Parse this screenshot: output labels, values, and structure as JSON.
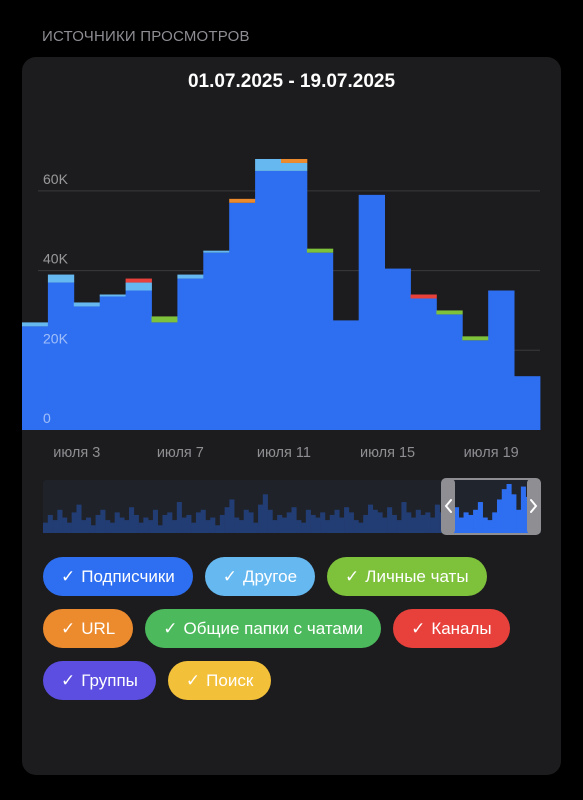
{
  "section": {
    "title": "ИСТОЧНИКИ ПРОСМОТРОВ"
  },
  "card": {
    "date_range": "01.07.2025 - 19.07.2025"
  },
  "colors": {
    "background": "#000000",
    "card": "#1c1c1e",
    "grid": "#3a3a3c",
    "axis_text": "#8e8e93"
  },
  "chips": [
    {
      "label": "Подписчики",
      "check": "✓",
      "color": "#2e6ff2"
    },
    {
      "label": "Другое",
      "check": "✓",
      "color": "#66b8f0"
    },
    {
      "label": "Личные чаты",
      "check": "✓",
      "color": "#7ec13b"
    },
    {
      "label": "URL",
      "check": "✓",
      "color": "#ec8a2e"
    },
    {
      "label": "Общие папки с чатами",
      "check": "✓",
      "color": "#4cba5c"
    },
    {
      "label": "Каналы",
      "check": "✓",
      "color": "#e8413b"
    },
    {
      "label": "Группы",
      "check": "✓",
      "color": "#5b4ee0"
    },
    {
      "label": "Поиск",
      "check": "✓",
      "color": "#f3c03a"
    }
  ],
  "chart_data": {
    "type": "bar",
    "stacked": true,
    "x_ticks": [
      "июля 3",
      "июля 7",
      "июля 11",
      "июля 15",
      "июля 19"
    ],
    "y_ticks": [
      "0",
      "20K",
      "40K",
      "60K"
    ],
    "ylim": [
      0,
      70000
    ],
    "grid": true,
    "series": [
      {
        "name": "Подписчики",
        "color": "#2e6ff2",
        "values": [
          26000,
          37000,
          31000,
          33500,
          35000,
          27000,
          38000,
          44500,
          57000,
          65000,
          65000,
          44500,
          27500,
          59000,
          40500,
          33000,
          29000,
          22500,
          35000,
          13500
        ]
      },
      {
        "name": "Другое",
        "color": "#66b8f0",
        "values": [
          1000,
          2000,
          1000,
          500,
          2000,
          0,
          1000,
          500,
          0,
          3000,
          2000,
          0,
          0,
          0,
          0,
          0,
          0,
          0,
          0,
          0
        ]
      },
      {
        "name": "Личные чаты",
        "color": "#7ec13b",
        "values": [
          0,
          0,
          0,
          0,
          0,
          1500,
          0,
          0,
          0,
          0,
          0,
          1000,
          0,
          0,
          0,
          0,
          1000,
          1000,
          0,
          0
        ]
      },
      {
        "name": "URL",
        "color": "#ec8a2e",
        "values": [
          0,
          0,
          0,
          0,
          0,
          0,
          0,
          0,
          1000,
          0,
          1000,
          0,
          0,
          0,
          0,
          0,
          0,
          0,
          0,
          0
        ]
      },
      {
        "name": "Каналы",
        "color": "#e8413b",
        "values": [
          0,
          0,
          0,
          0,
          1000,
          0,
          0,
          0,
          0,
          0,
          0,
          0,
          0,
          0,
          0,
          1000,
          0,
          0,
          0,
          0
        ]
      }
    ],
    "overview": {
      "values": [
        4,
        7,
        5,
        9,
        6,
        4,
        8,
        11,
        5,
        6,
        3,
        7,
        9,
        5,
        4,
        8,
        6,
        5,
        10,
        7,
        4,
        6,
        5,
        9,
        3,
        7,
        8,
        5,
        12,
        6,
        7,
        4,
        8,
        9,
        5,
        6,
        3,
        7,
        10,
        13,
        6,
        5,
        9,
        8,
        4,
        11,
        15,
        9,
        5,
        7,
        6,
        8,
        10,
        5,
        4,
        9,
        7,
        6,
        8,
        5,
        7,
        9,
        6,
        10,
        8,
        5,
        4,
        7,
        11,
        9,
        8,
        6,
        10,
        7,
        5,
        12,
        8,
        6,
        9,
        7,
        8,
        6,
        11,
        8,
        7,
        9,
        10,
        6,
        8,
        7,
        9,
        12,
        6,
        5,
        8,
        13,
        17,
        19,
        15,
        9,
        18,
        14,
        10,
        6
      ],
      "selection": "end"
    }
  }
}
